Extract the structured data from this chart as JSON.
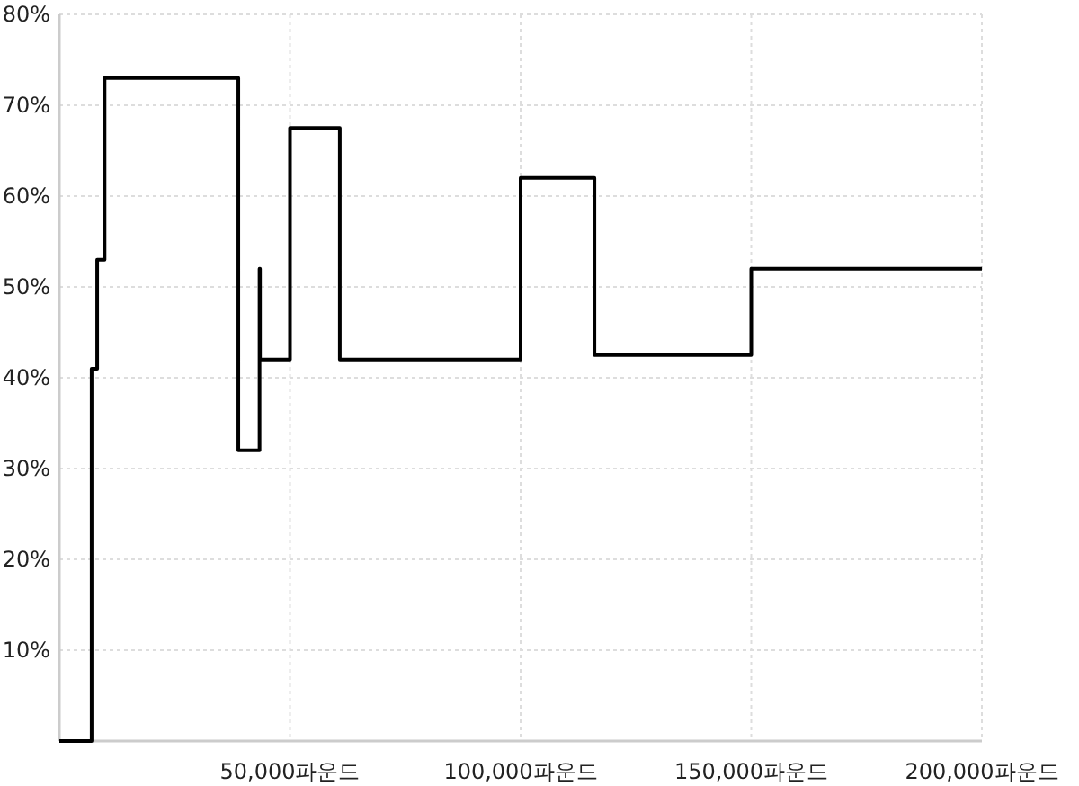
{
  "chart_data": {
    "type": "step",
    "x": [
      0,
      7000,
      8200,
      9800,
      38800,
      43400,
      43500,
      50000,
      60800,
      100000,
      116000,
      150000,
      200000
    ],
    "series": [
      {
        "color": "#000000",
        "values": [
          0,
          41,
          53,
          73,
          32,
          52,
          42,
          67.5,
          42,
          62,
          42.5,
          52,
          52
        ]
      }
    ],
    "xlim": [
      0,
      200000
    ],
    "ylim": [
      0,
      80
    ],
    "xticks": [
      {
        "value": 50000,
        "label": "50,000파운드"
      },
      {
        "value": 100000,
        "label": "100,000파운드"
      },
      {
        "value": 150000,
        "label": "150,000파운드"
      },
      {
        "value": 200000,
        "label": "200,000파운드"
      }
    ],
    "yticks": [
      {
        "value": 10,
        "label": "10%"
      },
      {
        "value": 20,
        "label": "20%"
      },
      {
        "value": 30,
        "label": "30%"
      },
      {
        "value": 40,
        "label": "40%"
      },
      {
        "value": 50,
        "label": "50%"
      },
      {
        "value": 60,
        "label": "60%"
      },
      {
        "value": 70,
        "label": "70%"
      },
      {
        "value": 80,
        "label": "80%"
      }
    ],
    "grid": true
  }
}
